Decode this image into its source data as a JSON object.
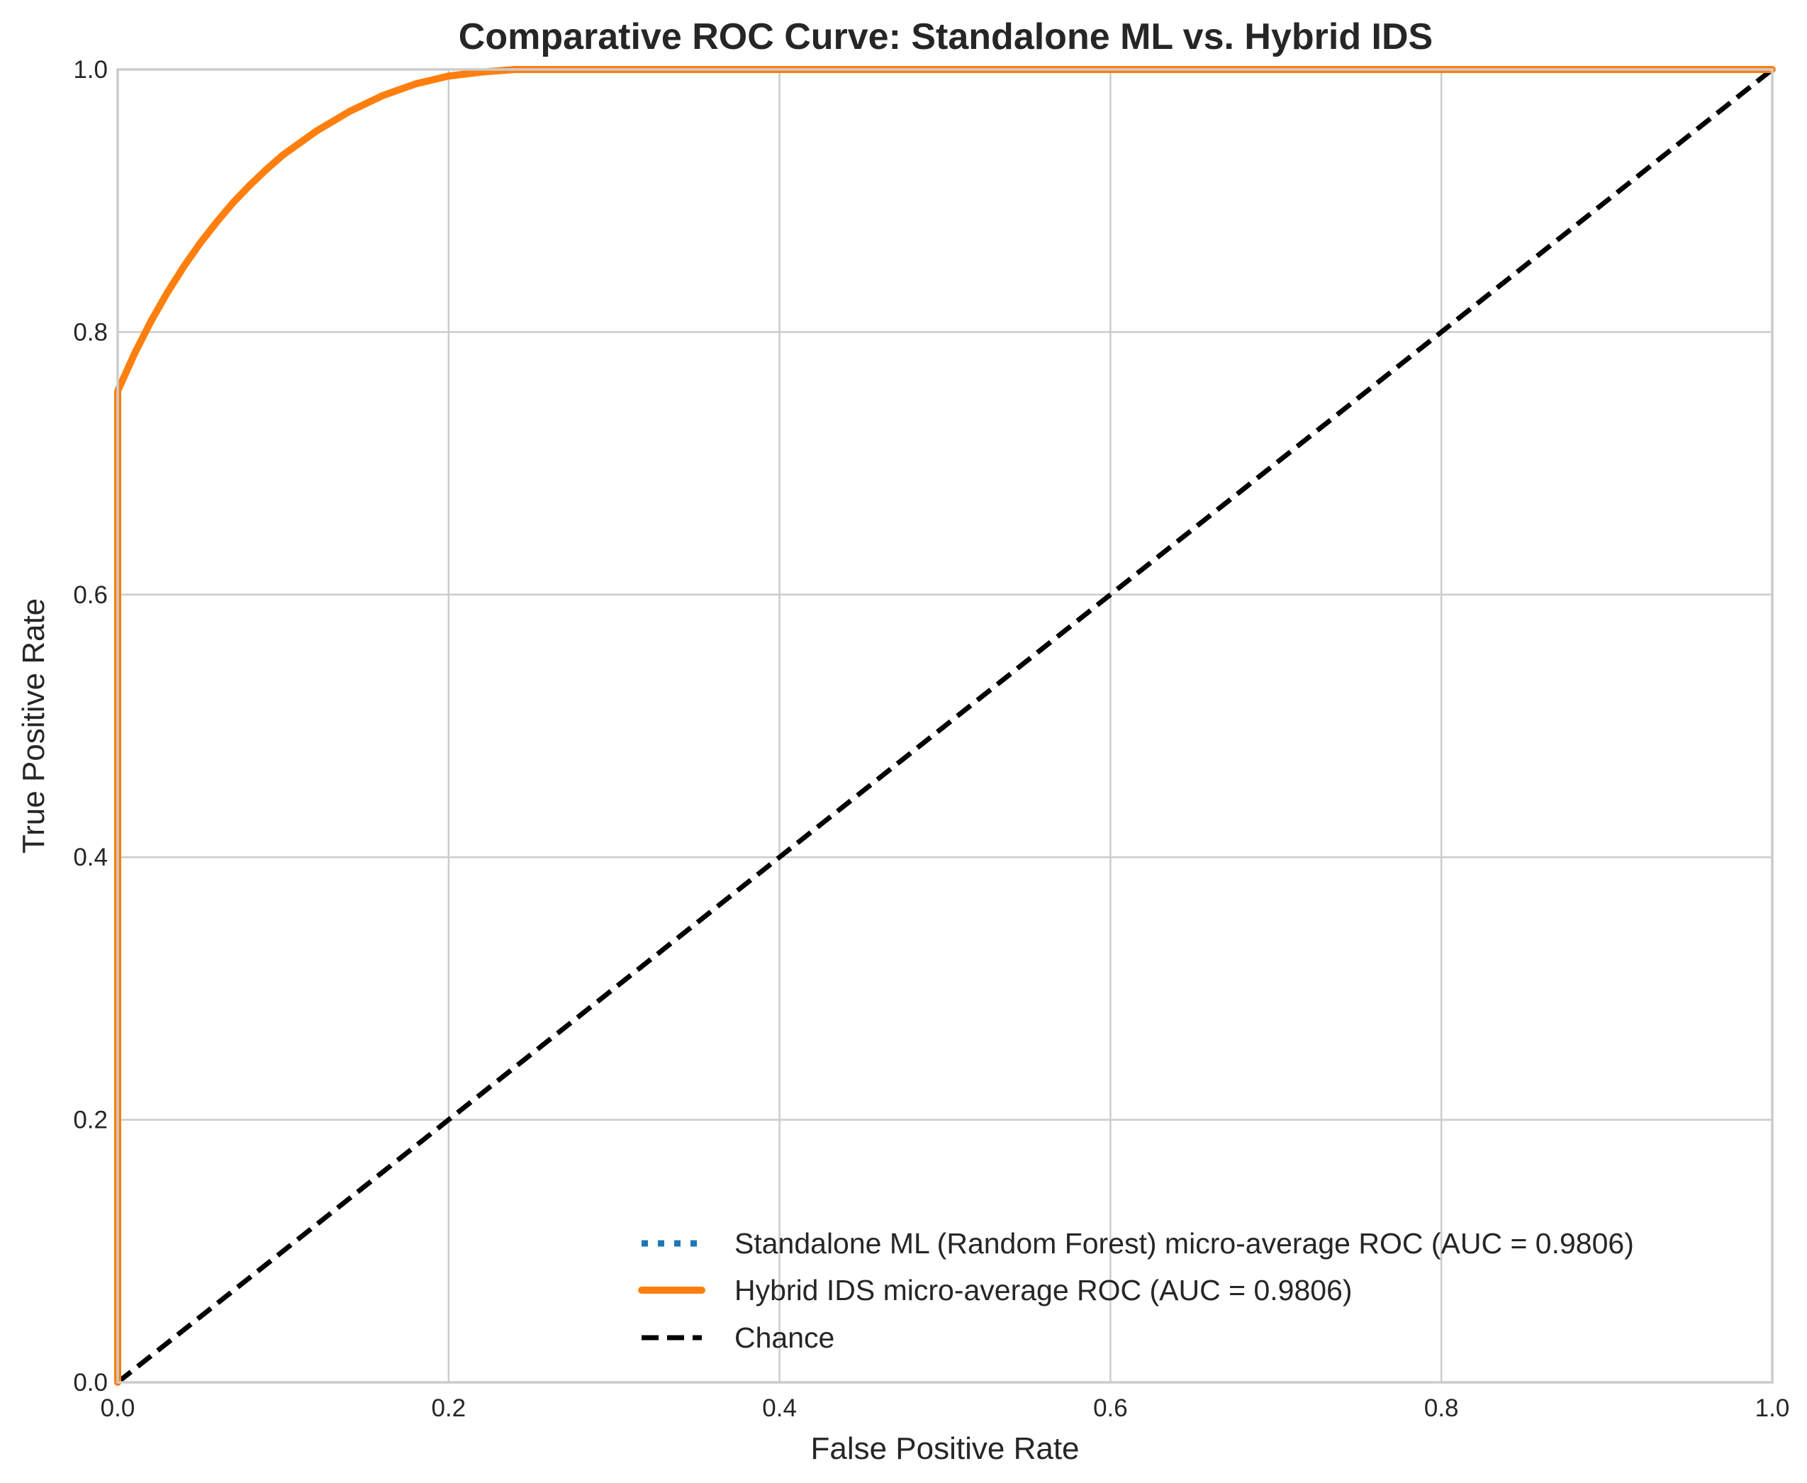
{
  "chart_data": {
    "type": "line",
    "title": "Comparative ROC Curve: Standalone ML vs. Hybrid IDS",
    "xlabel": "False Positive Rate",
    "ylabel": "True Positive Rate",
    "xlim": [
      0.0,
      1.0
    ],
    "ylim": [
      0.0,
      1.0
    ],
    "xticks": [
      0.0,
      0.2,
      0.4,
      0.6,
      0.8,
      1.0
    ],
    "yticks": [
      0.0,
      0.2,
      0.4,
      0.6,
      0.8,
      1.0
    ],
    "xtick_labels": [
      "0.0",
      "0.2",
      "0.4",
      "0.6",
      "0.8",
      "1.0"
    ],
    "ytick_labels": [
      "0.0",
      "0.2",
      "0.4",
      "0.6",
      "0.8",
      "1.0"
    ],
    "grid": true,
    "legend_position": "lower-right",
    "series": [
      {
        "name": "Standalone ML (Random Forest) micro-average ROC (AUC = 0.9806)",
        "style": "dotted",
        "color": "#1f77b4",
        "x": [
          0.0,
          0.0,
          0.01,
          0.02,
          0.03,
          0.04,
          0.05,
          0.06,
          0.07,
          0.08,
          0.09,
          0.1,
          0.12,
          0.14,
          0.16,
          0.18,
          0.2,
          0.22,
          0.24,
          0.3,
          0.4,
          0.5,
          0.6,
          0.7,
          0.8,
          0.9,
          1.0
        ],
        "y": [
          0.0,
          0.755,
          0.783,
          0.808,
          0.83,
          0.85,
          0.868,
          0.884,
          0.899,
          0.912,
          0.924,
          0.935,
          0.953,
          0.968,
          0.98,
          0.989,
          0.995,
          0.998,
          1.0,
          1.0,
          1.0,
          1.0,
          1.0,
          1.0,
          1.0,
          1.0,
          1.0
        ]
      },
      {
        "name": "Hybrid IDS micro-average ROC (AUC = 0.9806)",
        "style": "solid",
        "color": "#ff7f0e",
        "x": [
          0.0,
          0.0,
          0.01,
          0.02,
          0.03,
          0.04,
          0.05,
          0.06,
          0.07,
          0.08,
          0.09,
          0.1,
          0.12,
          0.14,
          0.16,
          0.18,
          0.2,
          0.22,
          0.24,
          0.3,
          0.4,
          0.5,
          0.6,
          0.7,
          0.8,
          0.9,
          1.0
        ],
        "y": [
          0.0,
          0.755,
          0.783,
          0.808,
          0.83,
          0.85,
          0.868,
          0.884,
          0.899,
          0.912,
          0.924,
          0.935,
          0.953,
          0.968,
          0.98,
          0.989,
          0.995,
          0.998,
          1.0,
          1.0,
          1.0,
          1.0,
          1.0,
          1.0,
          1.0,
          1.0,
          1.0
        ]
      },
      {
        "name": "Chance",
        "style": "dashed",
        "color": "#000000",
        "x": [
          0.0,
          1.0
        ],
        "y": [
          0.0,
          1.0
        ]
      }
    ]
  }
}
